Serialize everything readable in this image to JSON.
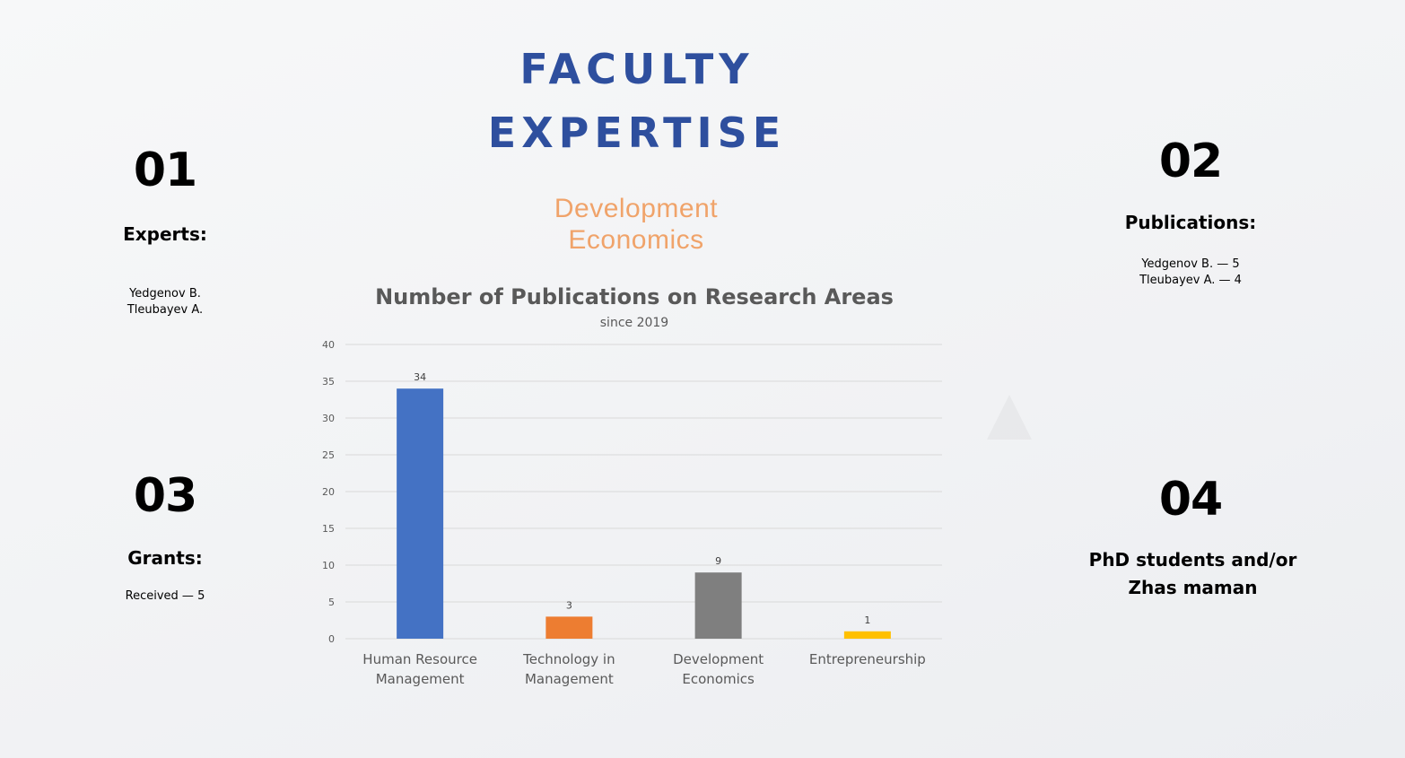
{
  "header": {
    "title_line1": "FACULTY",
    "title_line2": "EXPERTISE",
    "subtitle_line1": "Development",
    "subtitle_line2": "Economics"
  },
  "sections": [
    {
      "number": "01",
      "label": "Experts:",
      "lines": [
        "Yedgenov B.",
        "Tleubayev A."
      ]
    },
    {
      "number": "02",
      "label": "Publications:",
      "lines": [
        "Yedgenov B. — 5",
        "Tleubayev A. — 4"
      ]
    },
    {
      "number": "03",
      "label": "Grants:",
      "lines": [
        "Received — 5"
      ]
    },
    {
      "number": "04",
      "label_lines": [
        "PhD students and/or",
        "Zhas maman"
      ]
    }
  ],
  "chart_data": {
    "type": "bar",
    "title": "Number of Publications on Research Areas",
    "subtitle": "since 2019",
    "categories": [
      [
        "Human Resource",
        "Management"
      ],
      [
        "Technology in",
        "Management"
      ],
      [
        "Development",
        "Economics"
      ],
      [
        "Entrepreneurship"
      ]
    ],
    "values": [
      34,
      3,
      9,
      1
    ],
    "colors": [
      "#4472c4",
      "#ed7d31",
      "#7f7f7f",
      "#ffc000"
    ],
    "ylim": [
      0,
      40
    ],
    "yticks": [
      0,
      5,
      10,
      15,
      20,
      25,
      30,
      35,
      40
    ],
    "grid": true,
    "legend": "none"
  }
}
